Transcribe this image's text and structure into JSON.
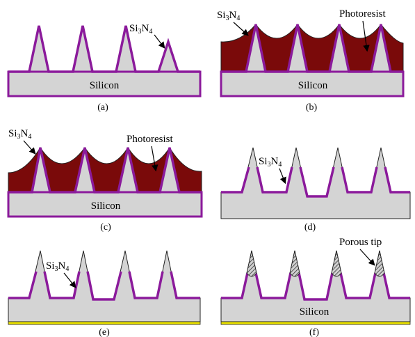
{
  "panels": [
    {
      "id": "a",
      "caption": "(a)",
      "substrate_label": "Silicon",
      "annotations": [
        {
          "text_main": "Si",
          "text_sub1": "3",
          "text_mid": "N",
          "text_sub2": "4"
        }
      ]
    },
    {
      "id": "b",
      "caption": "(b)",
      "substrate_label": "Silicon",
      "annotations": [
        {
          "text_main": "Si",
          "text_sub1": "3",
          "text_mid": "N",
          "text_sub2": "4"
        },
        {
          "text": "Photoresist"
        }
      ]
    },
    {
      "id": "c",
      "caption": "(c)",
      "substrate_label": "Silicon",
      "annotations": [
        {
          "text_main": "Si",
          "text_sub1": "3",
          "text_mid": "N",
          "text_sub2": "4"
        },
        {
          "text": "Photoresist"
        }
      ]
    },
    {
      "id": "d",
      "caption": "(d)",
      "substrate_label": "",
      "annotations": [
        {
          "text_main": "Si",
          "text_sub1": "3",
          "text_mid": "N",
          "text_sub2": "4"
        }
      ]
    },
    {
      "id": "e",
      "caption": "(e)",
      "substrate_label": "",
      "annotations": [
        {
          "text_main": "Si",
          "text_sub1": "3",
          "text_mid": "N",
          "text_sub2": "4"
        }
      ]
    },
    {
      "id": "f",
      "caption": "(f)",
      "substrate_label": "Silicon",
      "annotations": [
        {
          "text": "Porous tip"
        }
      ]
    }
  ],
  "colors": {
    "silicon": "#d4d4d4",
    "nitride_line": "#8b1a9b",
    "photoresist": "#7a0a0a",
    "backside_layer": "#e8e000",
    "outline": "#222222"
  }
}
